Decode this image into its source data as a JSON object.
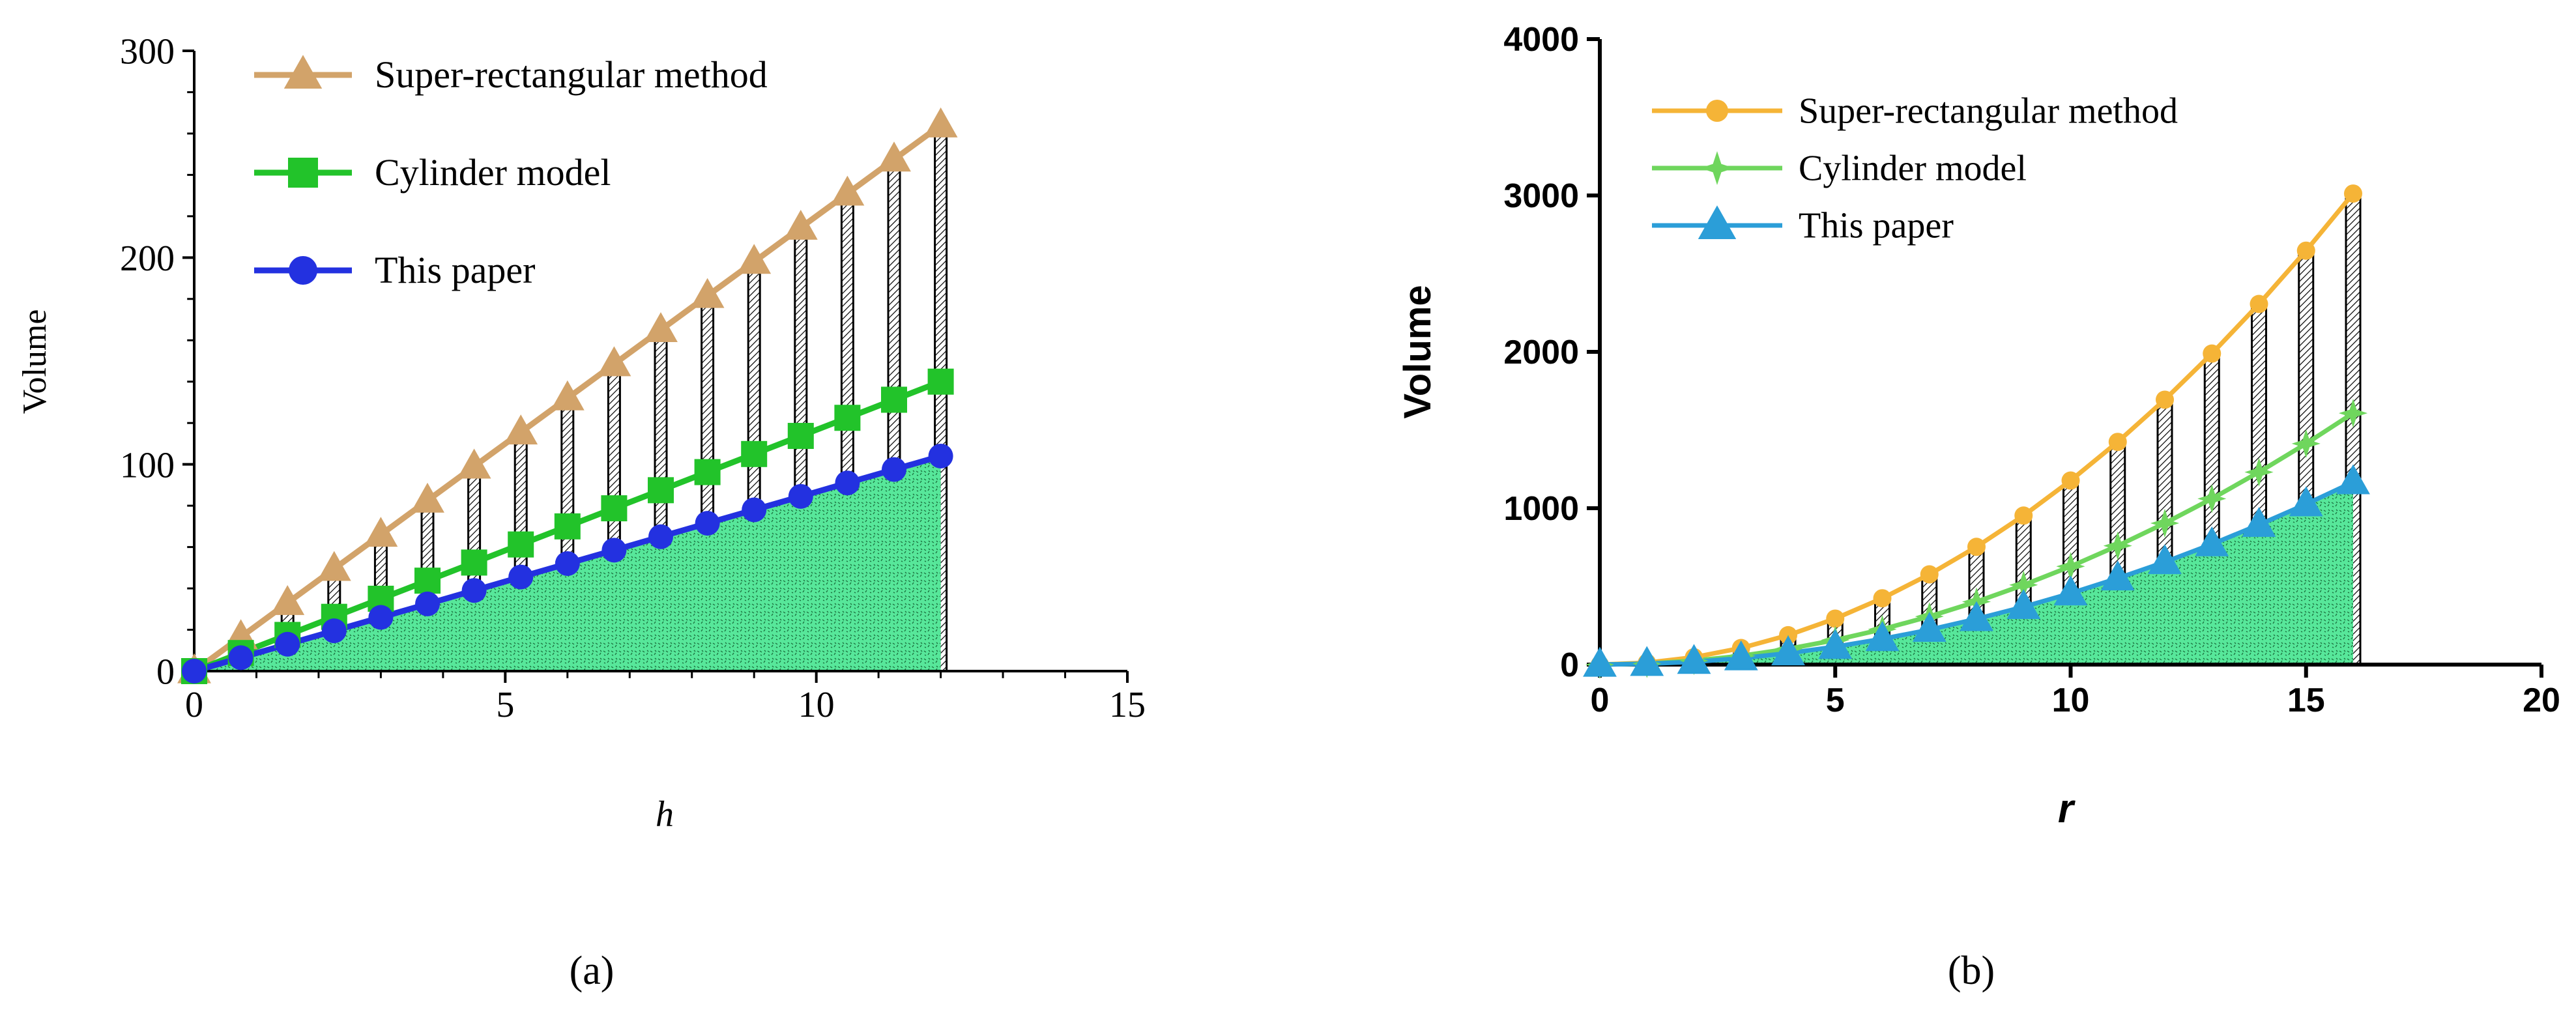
{
  "figure": {
    "panel_a_label": "(a)",
    "panel_b_label": "(b)"
  },
  "chart_data": [
    {
      "type": "line",
      "panel": "a",
      "title": "",
      "xlabel": "h",
      "ylabel": "Volume",
      "xlim": [
        0,
        15
      ],
      "ylim": [
        0,
        300
      ],
      "xticks": [
        0,
        5,
        10,
        15
      ],
      "yticks": [
        0,
        100,
        200,
        300
      ],
      "legend_position": "top-left",
      "x": [
        0,
        0.75,
        1.5,
        2.25,
        3,
        3.75,
        4.5,
        5.25,
        6,
        6.75,
        7.5,
        8.25,
        9,
        9.75,
        10.5,
        11.25,
        12
      ],
      "series": [
        {
          "name": "Super-rectangular method",
          "marker": "triangle",
          "color": "#d2a36a",
          "values": [
            0,
            16.5,
            33,
            49.5,
            66,
            82.5,
            99,
            115.5,
            132,
            148.5,
            165,
            181.5,
            198,
            214.5,
            231,
            247.5,
            264
          ]
        },
        {
          "name": "Cylinder model",
          "marker": "square",
          "color": "#22c32a",
          "values": [
            0,
            8.75,
            17.5,
            26.25,
            35,
            43.75,
            52.5,
            61.25,
            70,
            78.75,
            87.5,
            96.25,
            105,
            113.75,
            122.5,
            131.25,
            140
          ]
        },
        {
          "name": "This paper",
          "marker": "circle",
          "color": "#2331e0",
          "values": [
            0,
            6.5,
            13,
            19.5,
            26,
            32.5,
            39,
            45.5,
            52,
            58.5,
            65,
            71.5,
            78,
            84.5,
            91,
            97.5,
            104
          ]
        }
      ],
      "hatch_color": "#000000",
      "fill_color": "#57e79a"
    },
    {
      "type": "line",
      "panel": "b",
      "title": "",
      "xlabel": "r",
      "ylabel": "Volume",
      "xlim": [
        0,
        20
      ],
      "ylim": [
        0,
        4000
      ],
      "xticks": [
        0,
        5,
        10,
        15,
        20
      ],
      "yticks": [
        0,
        1000,
        2000,
        3000,
        4000
      ],
      "legend_position": "top-left",
      "x": [
        0,
        1,
        2,
        3,
        4,
        5,
        6,
        7,
        8,
        9,
        10,
        11,
        12,
        13,
        14,
        15,
        16
      ],
      "series": [
        {
          "name": "Super-rectangular method",
          "marker": "circle",
          "color": "#f5b437",
          "values": [
            0,
            12,
            47,
            106,
            188,
            294,
            424,
            577,
            753,
            953,
            1177,
            1424,
            1694,
            1989,
            2306,
            2647,
            3012
          ]
        },
        {
          "name": "Cylinder model",
          "marker": "star",
          "color": "#6fd65d",
          "values": [
            0,
            6,
            25,
            56,
            100,
            157,
            226,
            308,
            402,
            509,
            628,
            760,
            904,
            1061,
            1231,
            1413,
            1608
          ]
        },
        {
          "name": "This paper",
          "marker": "triangle",
          "color": "#2b9ed8",
          "values": [
            0,
            5,
            18,
            41,
            73,
            114,
            164,
            223,
            292,
            369,
            456,
            552,
            656,
            770,
            894,
            1026,
            1167
          ]
        }
      ],
      "hatch_color": "#000000",
      "fill_color": "#57e79a"
    }
  ]
}
